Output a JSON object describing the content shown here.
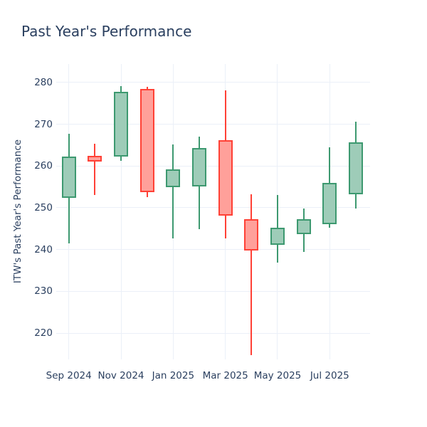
{
  "title": "Past Year's Performance",
  "chart_data": {
    "type": "candlestick",
    "title": "Past Year's Performance",
    "xlabel": "",
    "ylabel": "ITW's Past Year's Performance",
    "legend": "none",
    "grid": true,
    "y_ticks": [
      220,
      230,
      240,
      250,
      260,
      270,
      280
    ],
    "y_range": [
      213.7,
      284.4
    ],
    "x_tick_labels": [
      "Sep 2024",
      "Nov 2024",
      "Jan 2025",
      "Mar 2025",
      "May 2025",
      "Jul 2025"
    ],
    "x_tick_indices": [
      0,
      2,
      4,
      6,
      8,
      10
    ],
    "categories": [
      "Sep 2024",
      "Oct 2024",
      "Nov 2024",
      "Dec 2024",
      "Jan 2025",
      "Feb 2025",
      "Mar 2025",
      "Apr 2025",
      "May 2025",
      "Jun 2025",
      "Jul 2025",
      "Aug 2025"
    ],
    "ohlc": [
      {
        "month": "Sep 2024",
        "open": 252.3,
        "high": 267.7,
        "low": 241.4,
        "close": 262.2,
        "direction": "increasing"
      },
      {
        "month": "Oct 2024",
        "open": 262.4,
        "high": 265.3,
        "low": 253.1,
        "close": 261.0,
        "direction": "decreasing"
      },
      {
        "month": "Nov 2024",
        "open": 262.2,
        "high": 279.1,
        "low": 261.2,
        "close": 277.8,
        "direction": "increasing"
      },
      {
        "month": "Dec 2024",
        "open": 278.4,
        "high": 279.0,
        "low": 252.5,
        "close": 253.8,
        "direction": "decreasing"
      },
      {
        "month": "Jan 2025",
        "open": 255.0,
        "high": 265.1,
        "low": 242.6,
        "close": 259.2,
        "direction": "increasing"
      },
      {
        "month": "Feb 2025",
        "open": 255.1,
        "high": 267.0,
        "low": 244.8,
        "close": 264.3,
        "direction": "increasing"
      },
      {
        "month": "Mar 2025",
        "open": 266.1,
        "high": 278.1,
        "low": 242.7,
        "close": 248.1,
        "direction": "decreasing"
      },
      {
        "month": "Apr 2025",
        "open": 247.3,
        "high": 253.3,
        "low": 214.7,
        "close": 239.8,
        "direction": "decreasing"
      },
      {
        "month": "May 2025",
        "open": 241.2,
        "high": 253.0,
        "low": 236.8,
        "close": 245.3,
        "direction": "increasing"
      },
      {
        "month": "Jun 2025",
        "open": 243.7,
        "high": 249.9,
        "low": 239.5,
        "close": 247.3,
        "direction": "increasing"
      },
      {
        "month": "Jul 2025",
        "open": 246.0,
        "high": 264.4,
        "low": 245.3,
        "close": 255.9,
        "direction": "increasing"
      },
      {
        "month": "Aug 2025",
        "open": 253.3,
        "high": 270.6,
        "low": 249.8,
        "close": 265.6,
        "direction": "increasing"
      }
    ],
    "colors": {
      "increasing_line": "#3d9970",
      "increasing_fill": "#9eccb8",
      "decreasing_line": "#ff4136",
      "decreasing_fill": "#ffa09a",
      "grid": "#ebf0f8",
      "text": "#2a3f5f",
      "background": "#ffffff"
    }
  }
}
